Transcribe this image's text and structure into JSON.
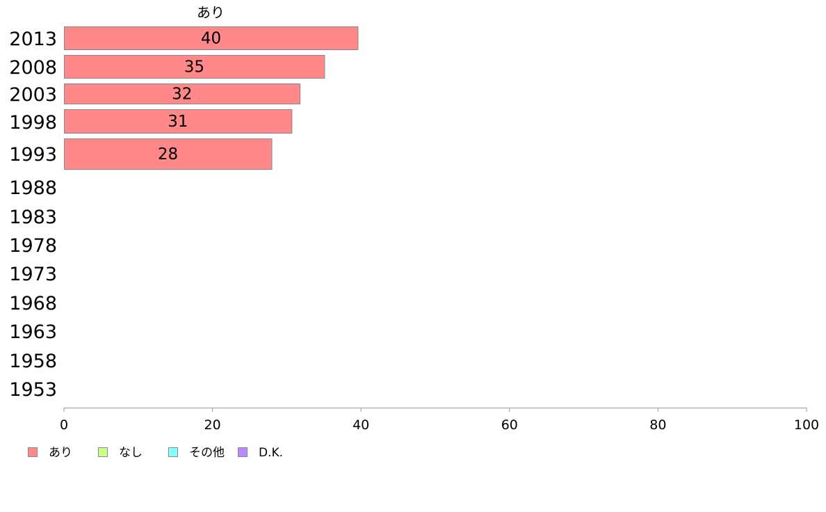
{
  "chart_data": {
    "type": "bar",
    "orientation": "horizontal",
    "series_title": "あり",
    "categories": [
      "2013",
      "2008",
      "2003",
      "1998",
      "1993",
      "1988",
      "1983",
      "1978",
      "1973",
      "1968",
      "1963",
      "1958",
      "1953"
    ],
    "values": [
      40,
      35,
      32,
      31,
      28,
      null,
      null,
      null,
      null,
      null,
      null,
      null,
      null
    ],
    "bar_extents": [
      39.6,
      35.1,
      31.8,
      30.7,
      28.0,
      null,
      null,
      null,
      null,
      null,
      null,
      null,
      null
    ],
    "xlim": [
      0,
      100
    ],
    "xticks": [
      "0",
      "20",
      "40",
      "60",
      "80",
      "100"
    ],
    "grid": false,
    "legend_position": "bottom-left",
    "legend": [
      {
        "label": "あり",
        "color": "#ff8888"
      },
      {
        "label": "なし",
        "color": "#ccff88"
      },
      {
        "label": "その他",
        "color": "#88ffff"
      },
      {
        "label": "D.K.",
        "color": "#bb88ff"
      }
    ],
    "bar_color": "#ff8888",
    "bar_stroke": "#888888",
    "axis_color": "#999999"
  }
}
